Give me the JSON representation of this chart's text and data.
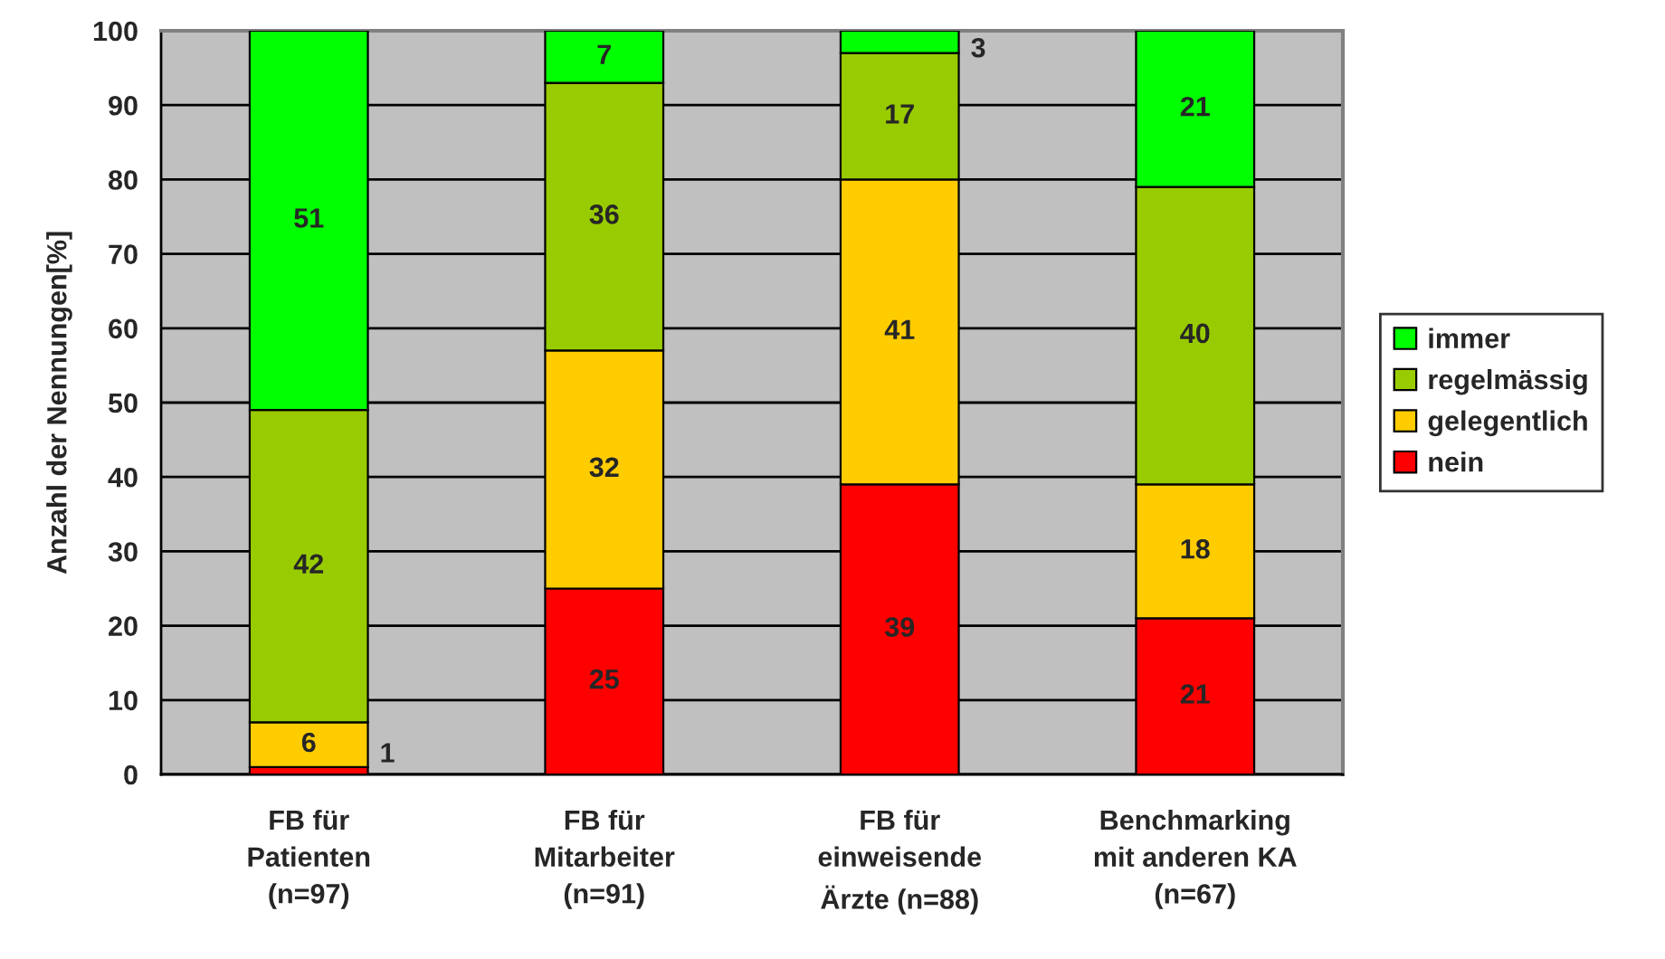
{
  "chart_data": {
    "type": "bar",
    "stacked": true,
    "ylabel": "Anzahl der Nennungen[%]",
    "categories": [
      "FB für\nPatienten\n(n=97)",
      "FB für\nMitarbeiter\n(n=91)",
      "FB für\neinweisende\nÄrzte (n=88)",
      "Benchmarking\nmit anderen KA\n(n=67)"
    ],
    "series": [
      {
        "name": "nein",
        "color": "#ff0000",
        "values": [
          1,
          25,
          39,
          21
        ]
      },
      {
        "name": "gelegentlich",
        "color": "#ffcc00",
        "values": [
          6,
          32,
          41,
          18
        ]
      },
      {
        "name": "regelmässig",
        "color": "#99cc00",
        "values": [
          42,
          36,
          17,
          40
        ]
      },
      {
        "name": "immer",
        "color": "#00ff00",
        "values": [
          51,
          7,
          3,
          21
        ]
      }
    ],
    "ylim": [
      0,
      100
    ],
    "yticks": [
      0,
      10,
      20,
      30,
      40,
      50,
      60,
      70,
      80,
      90,
      100
    ],
    "grid": "y",
    "legend": "right",
    "data_labels": true
  }
}
